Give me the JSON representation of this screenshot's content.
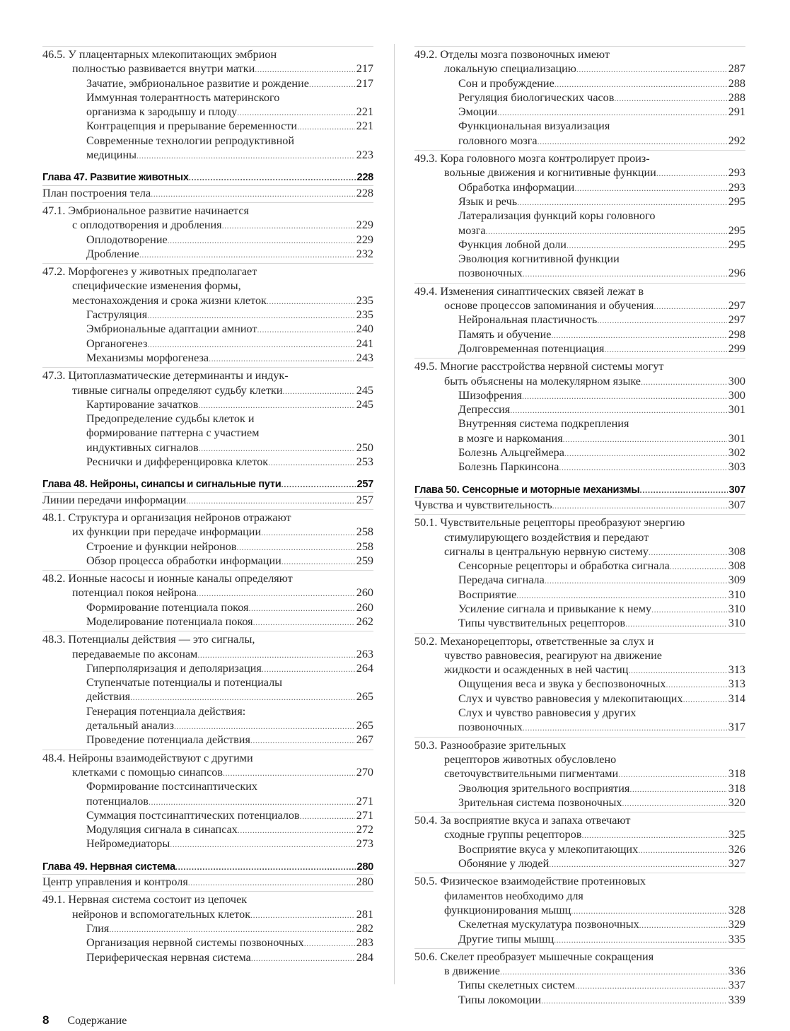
{
  "columns": [
    [
      {
        "type": "section",
        "lines": [
          "46.5. У плацентарных млекопитающих эмбрион",
          "полностью развивается внутри матки"
        ],
        "page": "217"
      },
      {
        "type": "sub",
        "lines": [
          "Зачатие, эмбриональное развитие и рождение"
        ],
        "page": "217"
      },
      {
        "type": "sub",
        "lines": [
          "Иммунная толерантность материнского",
          "организма к зародышу и плоду"
        ],
        "page": "221"
      },
      {
        "type": "sub",
        "lines": [
          "Контрацепция и прерывание беременности"
        ],
        "page": "221"
      },
      {
        "type": "sub",
        "lines": [
          "Современные технологии репродуктивной",
          "медицины"
        ],
        "page": "223"
      },
      {
        "type": "chapter",
        "lines": [
          "Глава 47. Развитие животных"
        ],
        "page": "228"
      },
      {
        "type": "intro",
        "lines": [
          "План построения тела"
        ],
        "page": "228"
      },
      {
        "type": "section",
        "lines": [
          "47.1. Эмбриональное развитие начинается",
          "с оплодотворения и дробления"
        ],
        "page": "229"
      },
      {
        "type": "sub",
        "lines": [
          "Оплодотворение"
        ],
        "page": "229"
      },
      {
        "type": "sub",
        "lines": [
          "Дробление"
        ],
        "page": "232"
      },
      {
        "type": "section",
        "lines": [
          "47.2. Морфогенез у животных предполагает",
          "специфические изменения формы,",
          "местонахождения и срока жизни клеток"
        ],
        "page": "235"
      },
      {
        "type": "sub",
        "lines": [
          "Гаструляция"
        ],
        "page": "235"
      },
      {
        "type": "sub",
        "lines": [
          "Эмбриональные адаптации амниот"
        ],
        "page": "240"
      },
      {
        "type": "sub",
        "lines": [
          "Органогенез"
        ],
        "page": "241"
      },
      {
        "type": "sub",
        "lines": [
          "Механизмы морфогенеза"
        ],
        "page": "243"
      },
      {
        "type": "section",
        "lines": [
          "47.3. Цитоплазматические детерминанты и индук-",
          "тивные сигналы определяют судьбу клетки"
        ],
        "page": "245"
      },
      {
        "type": "sub",
        "lines": [
          "Картирование зачатков"
        ],
        "page": "245"
      },
      {
        "type": "sub",
        "lines": [
          "Предопределение судьбы клеток и",
          "формирование паттерна с участием",
          "индуктивных сигналов"
        ],
        "page": "250"
      },
      {
        "type": "sub",
        "lines": [
          "Реснички и дифференцировка клеток"
        ],
        "page": "253"
      },
      {
        "type": "chapter",
        "lines": [
          "Глава 48. Нейроны, синапсы и сигнальные пути"
        ],
        "page": "257"
      },
      {
        "type": "intro",
        "lines": [
          "Линии передачи информации"
        ],
        "page": "257"
      },
      {
        "type": "section",
        "lines": [
          "48.1. Структура и организация нейронов отражают",
          "их функции при передаче информации"
        ],
        "page": "258"
      },
      {
        "type": "sub",
        "lines": [
          "Строение и функции нейронов"
        ],
        "page": "258"
      },
      {
        "type": "sub",
        "lines": [
          "Обзор процесса обработки информации"
        ],
        "page": "259"
      },
      {
        "type": "section",
        "lines": [
          "48.2. Ионные насосы и ионные каналы определяют",
          "потенциал покоя нейрона"
        ],
        "page": "260"
      },
      {
        "type": "sub",
        "lines": [
          "Формирование потенциала покоя"
        ],
        "page": "260"
      },
      {
        "type": "sub",
        "lines": [
          "Моделирование потенциала покоя"
        ],
        "page": "262"
      },
      {
        "type": "section",
        "lines": [
          "48.3. Потенциалы действия — это сигналы,",
          "передаваемые по аксонам"
        ],
        "page": "263"
      },
      {
        "type": "sub",
        "lines": [
          "Гиперполяризация и деполяризация"
        ],
        "page": "264"
      },
      {
        "type": "sub",
        "lines": [
          "Ступенчатые потенциалы и потенциалы",
          "действия"
        ],
        "page": "265"
      },
      {
        "type": "sub",
        "lines": [
          "Генерация потенциала действия:",
          "детальный анализ"
        ],
        "page": "265"
      },
      {
        "type": "sub",
        "lines": [
          "Проведение потенциала действия"
        ],
        "page": "267"
      },
      {
        "type": "section",
        "lines": [
          "48.4. Нейроны взаимодействуют с другими",
          "клетками с помощью синапсов"
        ],
        "page": "270"
      },
      {
        "type": "sub",
        "lines": [
          "Формирование постсинаптических",
          "потенциалов"
        ],
        "page": "271"
      },
      {
        "type": "sub",
        "lines": [
          "Суммация постсинаптических потенциалов"
        ],
        "page": "271"
      },
      {
        "type": "sub",
        "lines": [
          "Модуляция сигнала в синапсах"
        ],
        "page": "272"
      },
      {
        "type": "sub",
        "lines": [
          "Нейромедиаторы"
        ],
        "page": "273"
      },
      {
        "type": "chapter",
        "lines": [
          "Глава 49. Нервная система"
        ],
        "page": "280"
      },
      {
        "type": "intro",
        "lines": [
          "Центр управления и контроля"
        ],
        "page": "280"
      },
      {
        "type": "section",
        "lines": [
          "49.1. Нервная система состоит из цепочек",
          "нейронов и вспомогательных клеток"
        ],
        "page": "281"
      },
      {
        "type": "sub",
        "lines": [
          "Глия"
        ],
        "page": "282"
      },
      {
        "type": "sub",
        "lines": [
          "Организация нервной системы позвоночных"
        ],
        "page": "283"
      },
      {
        "type": "sub",
        "lines": [
          "Периферическая нервная система"
        ],
        "page": "284"
      }
    ],
    [
      {
        "type": "section",
        "lines": [
          "49.2. Отделы мозга позвоночных имеют",
          "локальную специализацию"
        ],
        "page": "287"
      },
      {
        "type": "sub",
        "lines": [
          "Сон и пробуждение"
        ],
        "page": "288"
      },
      {
        "type": "sub",
        "lines": [
          "Регуляция биологических часов"
        ],
        "page": "288"
      },
      {
        "type": "sub",
        "lines": [
          "Эмоции"
        ],
        "page": "291"
      },
      {
        "type": "sub",
        "lines": [
          "Функциональная визуализация",
          "головного мозга"
        ],
        "page": "292"
      },
      {
        "type": "section",
        "lines": [
          "49.3. Кора головного мозга контролирует произ-",
          "вольные движения и когнитивные функции"
        ],
        "page": "293"
      },
      {
        "type": "sub",
        "lines": [
          "Обработка информации"
        ],
        "page": "293"
      },
      {
        "type": "sub",
        "lines": [
          "Язык и речь"
        ],
        "page": "295"
      },
      {
        "type": "sub",
        "lines": [
          "Латерализация функций коры головного",
          "мозга"
        ],
        "page": "295"
      },
      {
        "type": "sub",
        "lines": [
          "Функция лобной доли"
        ],
        "page": "295"
      },
      {
        "type": "sub",
        "lines": [
          "Эволюция когнитивной функции",
          "позвоночных"
        ],
        "page": "296"
      },
      {
        "type": "section",
        "lines": [
          "49.4. Изменения синаптических связей лежат в",
          "основе процессов запоминания и обучения"
        ],
        "page": "297"
      },
      {
        "type": "sub",
        "lines": [
          "Нейрональная пластичность"
        ],
        "page": "297"
      },
      {
        "type": "sub",
        "lines": [
          "Память и обучение"
        ],
        "page": "298"
      },
      {
        "type": "sub",
        "lines": [
          "Долговременная потенциация"
        ],
        "page": "299"
      },
      {
        "type": "section",
        "lines": [
          "49.5. Многие расстройства нервной системы могут",
          "быть объяснены на молекулярном языке"
        ],
        "page": "300"
      },
      {
        "type": "sub",
        "lines": [
          "Шизофрения"
        ],
        "page": "300"
      },
      {
        "type": "sub",
        "lines": [
          "Депрессия"
        ],
        "page": "301"
      },
      {
        "type": "sub",
        "lines": [
          "Внутренняя система подкрепления",
          "в мозге и наркомания"
        ],
        "page": "301"
      },
      {
        "type": "sub",
        "lines": [
          "Болезнь Альцгеймера"
        ],
        "page": "302"
      },
      {
        "type": "sub",
        "lines": [
          "Болезнь Паркинсона"
        ],
        "page": "303"
      },
      {
        "type": "chapter",
        "lines": [
          "Глава 50. Сенсорные и моторные механизмы"
        ],
        "page": "307"
      },
      {
        "type": "intro",
        "lines": [
          "Чувства и чувствительность"
        ],
        "page": "307"
      },
      {
        "type": "section",
        "lines": [
          "50.1. Чувствительные рецепторы преобразуют энергию",
          "стимулирующего воздействия и передают",
          "сигналы в центральную нервную систему"
        ],
        "page": "308"
      },
      {
        "type": "sub",
        "lines": [
          "Сенсорные рецепторы и обработка сигнала"
        ],
        "page": "308"
      },
      {
        "type": "sub",
        "lines": [
          "Передача сигнала"
        ],
        "page": "309"
      },
      {
        "type": "sub",
        "lines": [
          "Восприятие"
        ],
        "page": "310"
      },
      {
        "type": "sub",
        "lines": [
          "Усиление сигнала и привыкание к нему"
        ],
        "page": "310"
      },
      {
        "type": "sub",
        "lines": [
          "Типы чувствительных рецепторов"
        ],
        "page": "310"
      },
      {
        "type": "section",
        "lines": [
          "50.2. Механорецепторы, ответственные за слух и",
          "чувство равновесия, реагируют на движение",
          "жидкости и осажденных в ней частиц"
        ],
        "page": "313"
      },
      {
        "type": "sub",
        "lines": [
          "Ощущения веса и звука у беспозвоночных"
        ],
        "page": "313"
      },
      {
        "type": "sub",
        "lines": [
          "Слух и чувство равновесия у млекопитающих"
        ],
        "page": "314"
      },
      {
        "type": "sub",
        "lines": [
          "Слух и чувство равновесия у других",
          "позвоночных"
        ],
        "page": "317"
      },
      {
        "type": "section",
        "lines": [
          "50.3. Разнообразие зрительных",
          "рецепторов животных обусловлено",
          "светочувствительными пигментами"
        ],
        "page": "318"
      },
      {
        "type": "sub",
        "lines": [
          "Эволюция зрительного восприятия"
        ],
        "page": "318"
      },
      {
        "type": "sub",
        "lines": [
          "Зрительная система позвоночных"
        ],
        "page": "320"
      },
      {
        "type": "section",
        "lines": [
          "50.4. За восприятие вкуса и запаха отвечают",
          "сходные группы рецепторов"
        ],
        "page": "325"
      },
      {
        "type": "sub",
        "lines": [
          "Восприятие вкуса у млекопитающих"
        ],
        "page": "326"
      },
      {
        "type": "sub",
        "lines": [
          "Обоняние у людей"
        ],
        "page": "327"
      },
      {
        "type": "section",
        "lines": [
          "50.5. Физическое взаимодействие протеиновых",
          "филаментов необходимо для",
          "функционирования мышц"
        ],
        "page": "328"
      },
      {
        "type": "sub",
        "lines": [
          "Скелетная мускулатура позвоночных"
        ],
        "page": "329"
      },
      {
        "type": "sub",
        "lines": [
          "Другие типы мышц"
        ],
        "page": "335"
      },
      {
        "type": "section",
        "lines": [
          "50.6. Скелет преобразует мышечные сокращения",
          "в движение"
        ],
        "page": "336"
      },
      {
        "type": "sub",
        "lines": [
          "Типы скелетных систем"
        ],
        "page": "337"
      },
      {
        "type": "sub",
        "lines": [
          "Типы локомоции"
        ],
        "page": "339"
      }
    ]
  ],
  "footer": {
    "page_number": "8",
    "title": "Содержание"
  }
}
